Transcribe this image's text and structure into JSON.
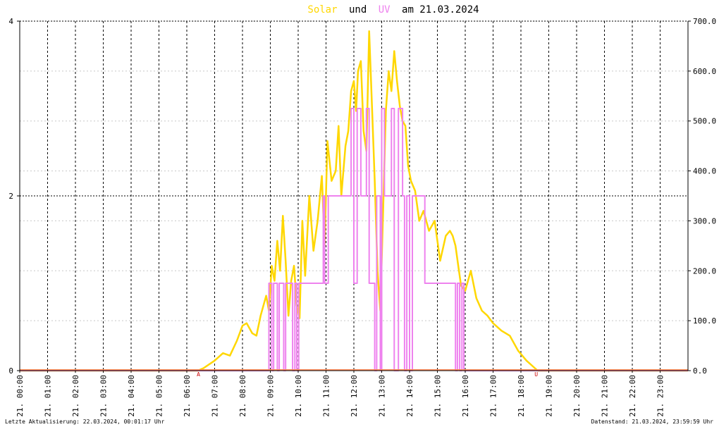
{
  "chart_data": {
    "type": "line",
    "date": "21.03.2024",
    "title": {
      "part_solar": "Solar",
      "part_and": "und",
      "part_uv": "UV",
      "part_rest": "am 21.03.2024"
    },
    "colors": {
      "solar": "#ffd700",
      "uv": "#ee82ee",
      "baseline": "#ff8c5a",
      "marker": "#cc0000"
    },
    "x_range_hours": [
      0,
      24
    ],
    "x_tick_hours": [
      0,
      1,
      2,
      3,
      4,
      5,
      6,
      7,
      8,
      9,
      10,
      11,
      12,
      13,
      14,
      15,
      16,
      17,
      18,
      19,
      20,
      21,
      22,
      23
    ],
    "x_tick_labels": [
      "21. 00:00",
      "21. 01:00",
      "21. 02:00",
      "21. 03:00",
      "21. 04:00",
      "21. 05:00",
      "21. 06:00",
      "21. 07:00",
      "21. 08:00",
      "21. 09:00",
      "21. 10:00",
      "21. 11:00",
      "21. 12:00",
      "21. 13:00",
      "21. 14:00",
      "21. 15:00",
      "21. 16:00",
      "21. 17:00",
      "21. 18:00",
      "21. 19:00",
      "21. 20:00",
      "21. 21:00",
      "21. 22:00",
      "21. 23:00"
    ],
    "y_left": {
      "label": "",
      "range": [
        0,
        4
      ],
      "tick_values": [
        0,
        2,
        4
      ],
      "tick_labels": [
        "0",
        "2",
        "4"
      ]
    },
    "y_right": {
      "label": "",
      "range": [
        0,
        700
      ],
      "tick_values": [
        0,
        100,
        200,
        300,
        400,
        500,
        600,
        700
      ],
      "tick_labels": [
        "0.0",
        "100.0",
        "200.0",
        "300.0",
        "400.0",
        "500.0",
        "600.0",
        "700.0"
      ]
    },
    "grid": true,
    "markers": [
      {
        "text": "A",
        "hour": 6.42
      },
      {
        "text": "U",
        "hour": 18.55
      }
    ],
    "series": [
      {
        "name": "Solar",
        "axis": "right",
        "x": [
          0,
          6.4,
          6.6,
          7.0,
          7.3,
          7.55,
          7.8,
          8.0,
          8.15,
          8.35,
          8.5,
          8.65,
          8.85,
          8.95,
          9.05,
          9.15,
          9.25,
          9.35,
          9.45,
          9.55,
          9.65,
          9.75,
          9.85,
          9.95,
          10.05,
          10.15,
          10.25,
          10.4,
          10.55,
          10.7,
          10.85,
          10.95,
          11.05,
          11.2,
          11.35,
          11.45,
          11.55,
          11.7,
          11.8,
          11.9,
          12.0,
          12.08,
          12.15,
          12.25,
          12.35,
          12.45,
          12.55,
          12.65,
          12.75,
          12.85,
          12.95,
          13.05,
          13.15,
          13.25,
          13.35,
          13.45,
          13.55,
          13.65,
          13.75,
          13.85,
          13.95,
          14.05,
          14.2,
          14.35,
          14.5,
          14.7,
          14.9,
          15.1,
          15.3,
          15.45,
          15.55,
          15.65,
          15.75,
          15.85,
          16.0,
          16.2,
          16.4,
          16.6,
          16.8,
          17.0,
          17.3,
          17.6,
          17.9,
          18.2,
          18.5,
          18.6,
          24
        ],
        "values": [
          0,
          0,
          5,
          20,
          35,
          30,
          60,
          90,
          95,
          75,
          70,
          110,
          150,
          120,
          210,
          180,
          260,
          200,
          310,
          220,
          110,
          180,
          210,
          130,
          105,
          300,
          190,
          350,
          240,
          300,
          390,
          250,
          460,
          380,
          400,
          490,
          350,
          450,
          480,
          560,
          580,
          520,
          600,
          620,
          480,
          440,
          680,
          530,
          380,
          200,
          120,
          320,
          520,
          600,
          560,
          640,
          580,
          530,
          500,
          490,
          410,
          380,
          360,
          300,
          320,
          280,
          300,
          220,
          270,
          280,
          270,
          250,
          210,
          170,
          160,
          200,
          145,
          120,
          110,
          95,
          80,
          70,
          40,
          20,
          5,
          0,
          0
        ]
      },
      {
        "name": "UV",
        "axis": "left",
        "x": [
          0,
          8.95,
          8.95,
          9.05,
          9.05,
          9.12,
          9.12,
          9.25,
          9.25,
          9.32,
          9.32,
          9.48,
          9.48,
          9.55,
          9.55,
          9.8,
          9.8,
          9.88,
          9.88,
          9.95,
          9.95,
          10.02,
          10.02,
          10.05,
          10.05,
          10.9,
          10.9,
          10.95,
          10.95,
          11.08,
          11.08,
          11.15,
          11.15,
          11.9,
          11.9,
          12.0,
          12.0,
          12.12,
          12.12,
          12.25,
          12.25,
          12.45,
          12.45,
          12.55,
          12.55,
          12.75,
          12.75,
          12.82,
          12.82,
          12.95,
          12.95,
          13.0,
          13.0,
          13.1,
          13.1,
          13.35,
          13.35,
          13.45,
          13.45,
          13.6,
          13.6,
          13.75,
          13.75,
          13.82,
          13.82,
          13.9,
          13.9,
          14.0,
          14.0,
          14.1,
          14.1,
          14.55,
          14.55,
          14.62,
          14.62,
          15.65,
          15.65,
          15.72,
          15.72,
          15.8,
          15.8,
          15.88,
          15.88,
          15.95,
          15.95,
          24
        ],
        "values": [
          0,
          0,
          1,
          1,
          0,
          0,
          1,
          1,
          0,
          0,
          1,
          1,
          0,
          0,
          1,
          1,
          0,
          0,
          1,
          1,
          0,
          0,
          1,
          1,
          1,
          1,
          2,
          2,
          1,
          1,
          2,
          2,
          2,
          2,
          3,
          3,
          1,
          1,
          3,
          3,
          2,
          2,
          3,
          3,
          1,
          1,
          0,
          0,
          2,
          2,
          0,
          0,
          3,
          3,
          2,
          2,
          3,
          3,
          0,
          0,
          3,
          3,
          2,
          2,
          0,
          0,
          2,
          2,
          0,
          0,
          2,
          2,
          1,
          1,
          1,
          1,
          0,
          0,
          1,
          1,
          0,
          0,
          1,
          1,
          0,
          0
        ]
      }
    ]
  },
  "footer": {
    "left": "Letzte Aktualisierung: 22.03.2024, 00:01:17 Uhr",
    "right": "Datenstand: 21.03.2024, 23:59:59 Uhr"
  }
}
